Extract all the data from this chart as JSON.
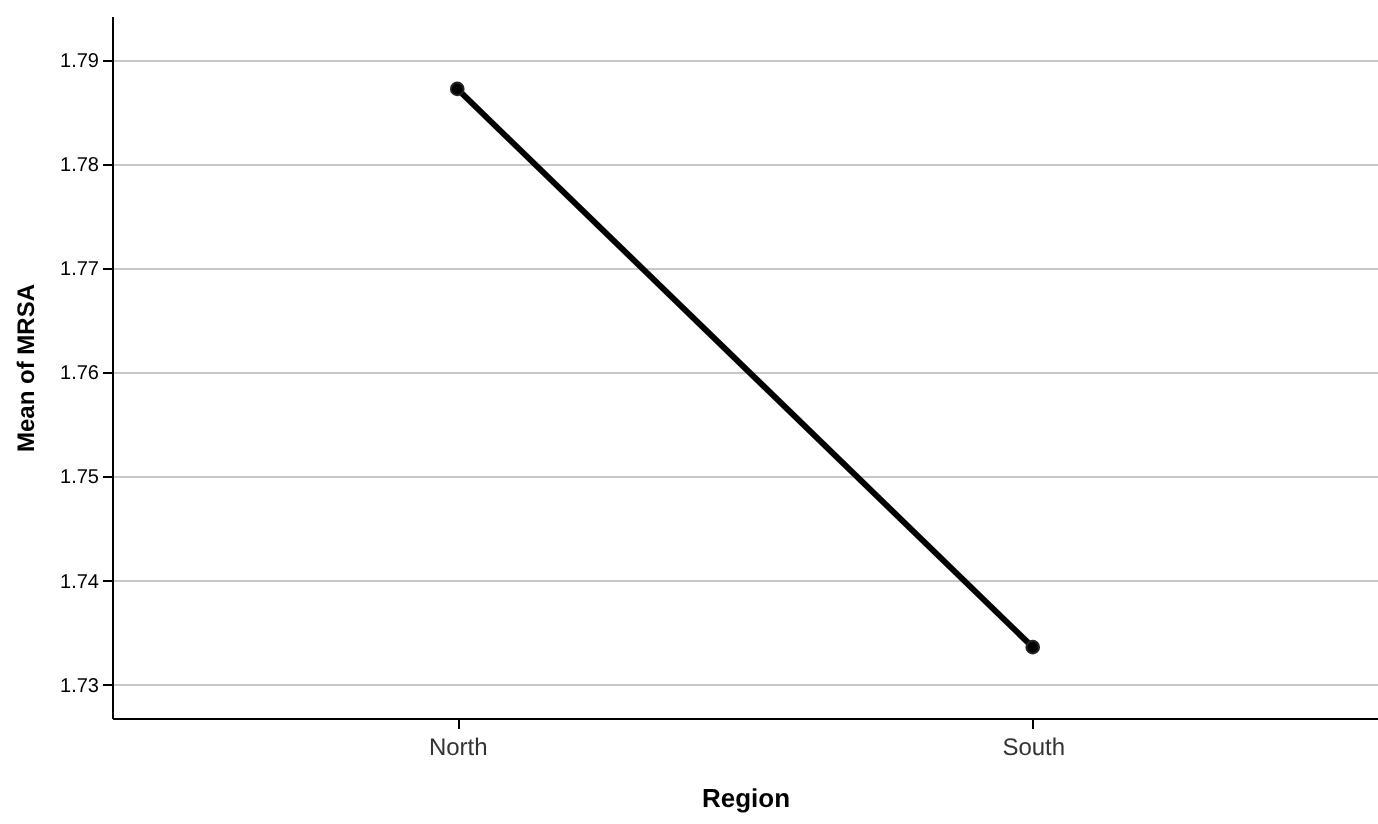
{
  "chart_data": {
    "type": "line",
    "xlabel": "Region",
    "ylabel": "Mean of MRSA",
    "categories": [
      "North",
      "South"
    ],
    "series": [
      {
        "color": "#000000",
        "values": [
          1.7872,
          1.7336
        ]
      }
    ],
    "ylim": [
      1.7268,
      1.7942
    ],
    "yticks": [
      1.73,
      1.74,
      1.75,
      1.76,
      1.77,
      1.78,
      1.79
    ],
    "grid": "y",
    "marker": "circle",
    "legend": false
  }
}
